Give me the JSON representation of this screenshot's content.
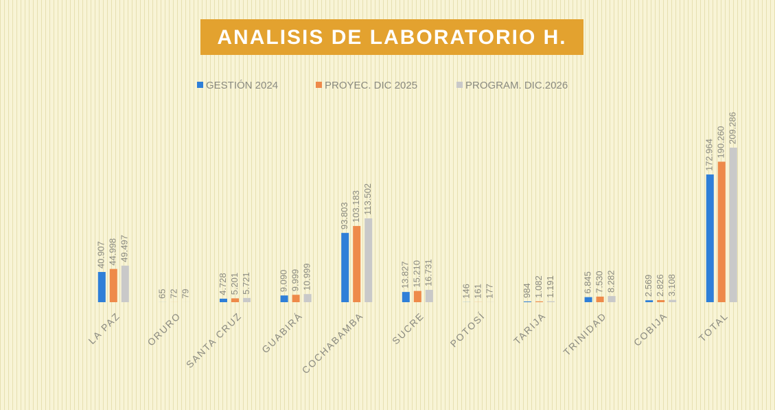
{
  "chart_data": {
    "type": "bar",
    "title": "ANALISIS DE LABORATORIO H.",
    "categories": [
      "LA PAZ",
      "ORURO",
      "SANTA CRUZ",
      "GUABIRÁ",
      "COCHABAMBA",
      "SUCRE",
      "POTOSÍ",
      "TARIJA",
      "TRINIDAD",
      "COBIJA",
      "TOTAL"
    ],
    "series": [
      {
        "name": "GESTIÓN 2024",
        "color": "#2f7fd8",
        "values": [
          40907,
          65,
          4728,
          9090,
          93803,
          13827,
          146,
          984,
          6845,
          2569,
          172964
        ],
        "value_labels": [
          "40.907",
          "65",
          "4.728",
          "9.090",
          "93.803",
          "13.827",
          "146",
          "984",
          "6.845",
          "2.569",
          "172.964"
        ]
      },
      {
        "name": "PROYEC. DIC 2025",
        "color": "#ee8a4a",
        "values": [
          44998,
          72,
          5201,
          9999,
          103183,
          15210,
          161,
          1082,
          7530,
          2826,
          190260
        ],
        "value_labels": [
          "44.998",
          "72",
          "5.201",
          "9.999",
          "103.183",
          "15.210",
          "161",
          "1.082",
          "7.530",
          "2.826",
          "190.260"
        ]
      },
      {
        "name": "PROGRAM. DIC.2026",
        "color": "#c9c9c9",
        "values": [
          49497,
          79,
          5721,
          10999,
          113502,
          16731,
          177,
          1191,
          8282,
          3108,
          209286
        ],
        "value_labels": [
          "49.497",
          "79",
          "5.721",
          "10.999",
          "113.502",
          "16.731",
          "177",
          "1.191",
          "8.282",
          "3.108",
          "209.286"
        ]
      }
    ],
    "legend": "top"
  }
}
